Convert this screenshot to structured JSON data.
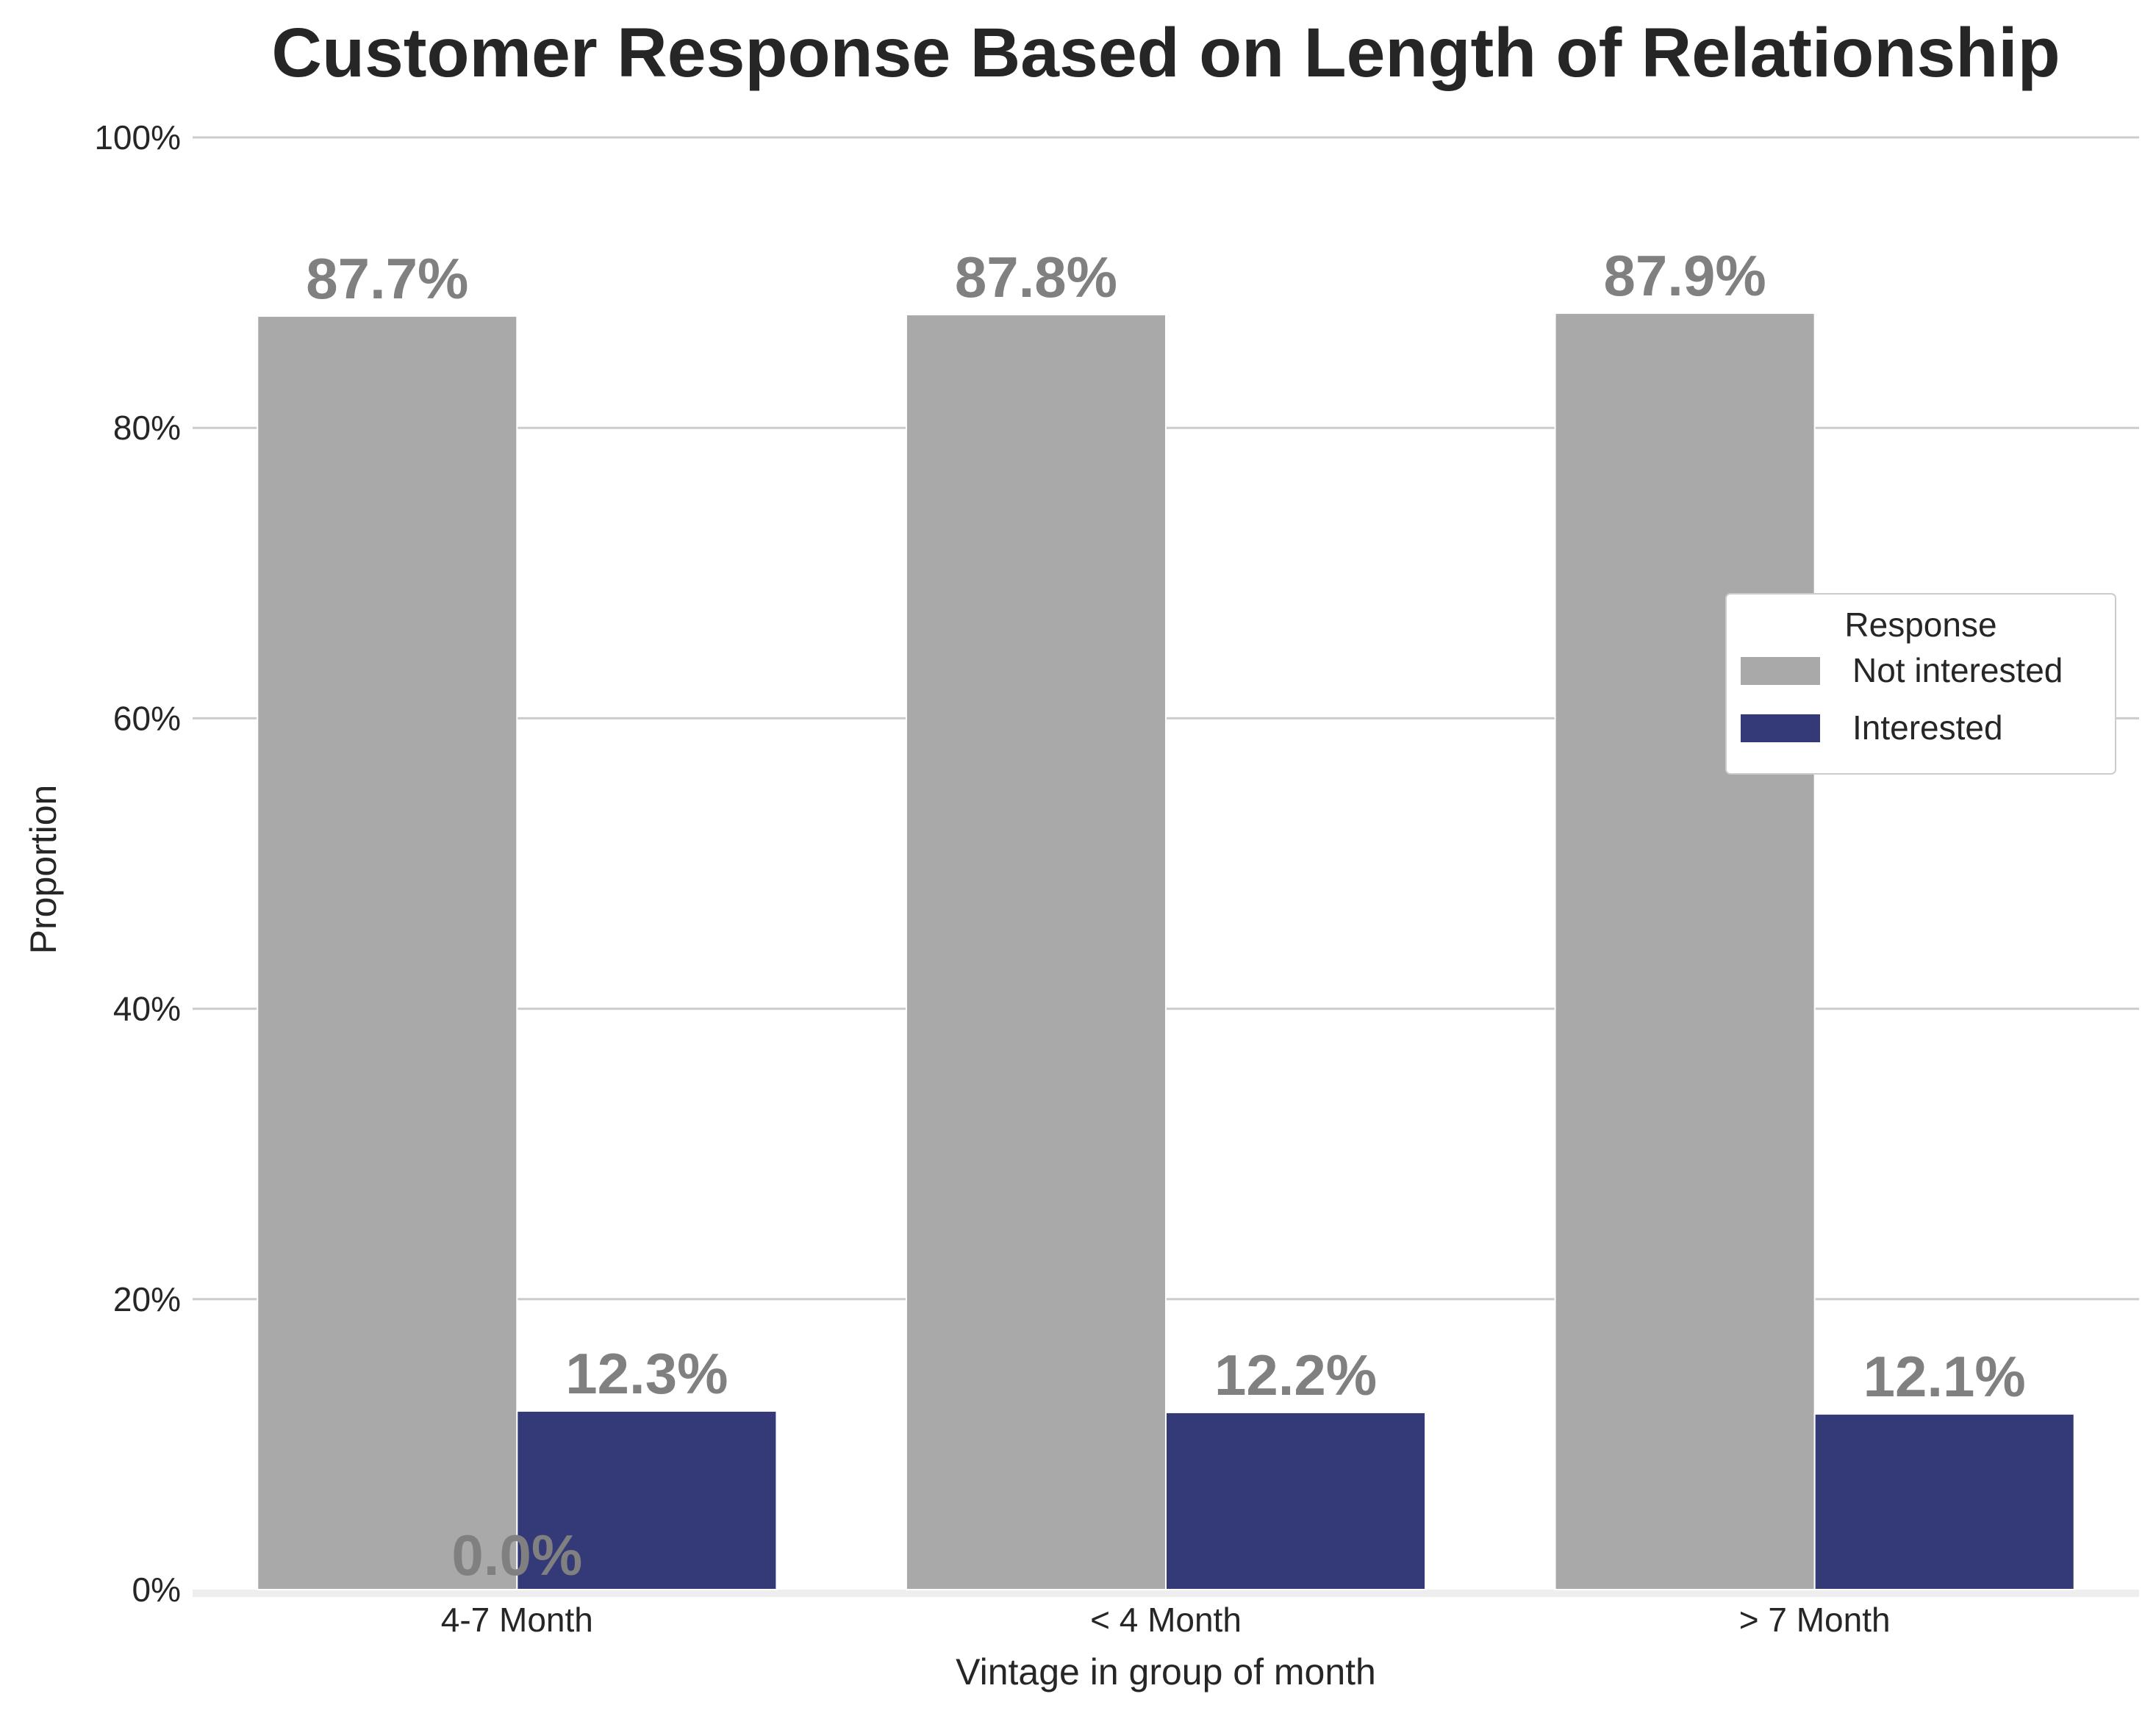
{
  "chart_data": {
    "type": "bar",
    "title": "Customer Response Based on Length of Relationship",
    "xlabel": "Vintage in group of month",
    "ylabel": "Proportion",
    "categories": [
      "4-7 Month",
      "< 4 Month",
      "> 7 Month"
    ],
    "series": [
      {
        "name": "Not interested",
        "color": "#a9a9a9",
        "values": [
          87.7,
          87.8,
          87.9
        ]
      },
      {
        "name": "Interested",
        "color": "#343a78",
        "values": [
          12.3,
          12.2,
          12.1
        ]
      }
    ],
    "ylim": [
      0,
      100
    ],
    "yticks": [
      "0%",
      "20%",
      "40%",
      "60%",
      "80%",
      "100%"
    ],
    "extra_labels": [
      "0.0%"
    ],
    "legend": {
      "title": "Response",
      "placement": "center-right"
    },
    "grid": true
  }
}
